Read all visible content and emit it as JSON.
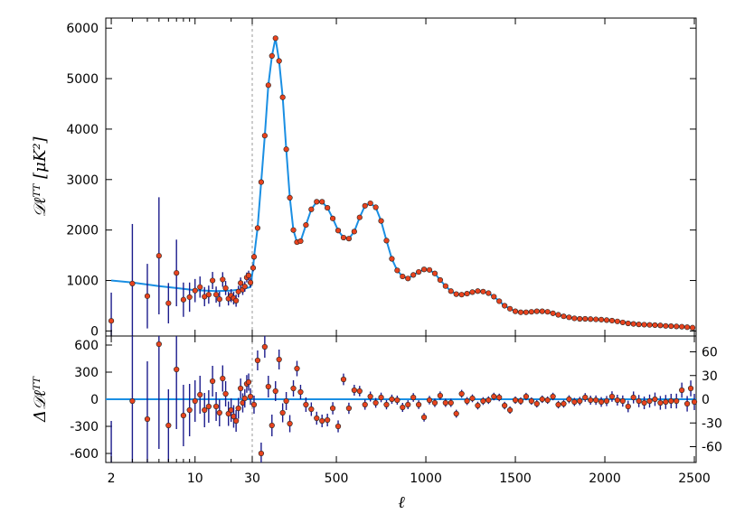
{
  "chart_data": [
    {
      "type": "scatter",
      "panel": "top",
      "ylabel": "𝒟ℓᵀᵀ [μK²]",
      "ylim": [
        -100,
        6200
      ],
      "yticks": [
        0,
        1000,
        2000,
        3000,
        4000,
        5000,
        6000
      ],
      "x_scale": "log below ℓ=30, linear above",
      "xlim": [
        1.8,
        2510
      ],
      "split_marker_x": 30,
      "colors": {
        "model": "#1a8fe3",
        "points": "#e8431e",
        "errorbars": "#1c1c8c",
        "split": "#999999"
      },
      "series": [
        {
          "name": "",
          "x": [
            2,
            3,
            4,
            5,
            6,
            7,
            8,
            9,
            10,
            11,
            12,
            13,
            14,
            15,
            16,
            17,
            18,
            19,
            20,
            21,
            22,
            23,
            24,
            25,
            26,
            27,
            28,
            29
          ],
          "y": [
            200,
            940,
            690,
            1490,
            550,
            1150,
            620,
            670,
            800,
            870,
            680,
            720,
            1000,
            720,
            630,
            1020,
            850,
            640,
            700,
            650,
            600,
            780,
            950,
            820,
            880,
            1060,
            1100,
            960
          ],
          "err": [
            560,
            1180,
            640,
            1160,
            400,
            660,
            340,
            290,
            230,
            210,
            190,
            180,
            170,
            160,
            150,
            145,
            140,
            135,
            130,
            125,
            120,
            115,
            110,
            106,
            102,
            98,
            95,
            92
          ]
        },
        {
          "name": "",
          "x": [
            35,
            40,
            60,
            80,
            100,
            120,
            140,
            160,
            180,
            200,
            220,
            240,
            260,
            280,
            300,
            330,
            360,
            390,
            420,
            450,
            480,
            510,
            540,
            570,
            600,
            630,
            660,
            690,
            720,
            750,
            780,
            810,
            840,
            870,
            900,
            930,
            960,
            990,
            1020,
            1050,
            1080,
            1110,
            1140,
            1170,
            1200,
            1230,
            1260,
            1290,
            1320,
            1350,
            1380,
            1410,
            1440,
            1470,
            1500,
            1530,
            1560,
            1590,
            1620,
            1650,
            1680,
            1710,
            1740,
            1770,
            1800,
            1830,
            1860,
            1890,
            1920,
            1950,
            1980,
            2010,
            2040,
            2070,
            2100,
            2130,
            2160,
            2190,
            2220,
            2250,
            2280,
            2310,
            2340,
            2370,
            2400,
            2430,
            2460,
            2490
          ],
          "y": [
            1250,
            1470,
            2040,
            2950,
            3870,
            4870,
            5450,
            5800,
            5350,
            4630,
            3600,
            2640,
            2000,
            1760,
            1780,
            2100,
            2410,
            2560,
            2560,
            2440,
            2230,
            1990,
            1850,
            1830,
            1970,
            2250,
            2480,
            2530,
            2450,
            2180,
            1790,
            1430,
            1200,
            1080,
            1040,
            1110,
            1170,
            1220,
            1210,
            1140,
            1010,
            890,
            790,
            730,
            720,
            740,
            770,
            790,
            780,
            750,
            680,
            590,
            500,
            440,
            390,
            370,
            370,
            380,
            390,
            390,
            380,
            350,
            320,
            290,
            270,
            250,
            240,
            240,
            235,
            230,
            225,
            215,
            205,
            190,
            170,
            150,
            140,
            130,
            125,
            120,
            115,
            110,
            100,
            95,
            90,
            85,
            75,
            65
          ],
          "err": [
            70,
            60,
            50,
            45,
            40,
            40,
            40,
            40,
            40,
            35,
            35,
            30,
            30,
            25,
            25,
            25,
            25,
            25,
            25,
            25,
            25,
            25,
            25,
            25,
            25,
            25,
            25,
            25,
            25,
            25,
            25,
            25,
            25,
            25,
            25,
            25,
            25,
            25,
            25,
            25,
            25,
            25,
            25,
            25,
            25,
            25,
            25,
            25,
            25,
            25,
            25,
            25,
            25,
            25,
            25,
            25,
            25,
            25,
            25,
            25,
            25,
            25,
            25,
            25,
            25,
            25,
            25,
            25,
            25,
            25,
            25,
            25,
            25,
            25,
            25,
            25,
            25,
            25,
            25,
            25,
            25,
            25,
            25,
            25,
            25,
            25,
            25,
            25
          ]
        }
      ],
      "model_curve": {
        "x": [
          2,
          3,
          4,
          5,
          7,
          10,
          15,
          20,
          25,
          29,
          35,
          40,
          60,
          80,
          100,
          120,
          140,
          160,
          180,
          200,
          220,
          240,
          260,
          280,
          300,
          330,
          360,
          390,
          420,
          450,
          480,
          510,
          540,
          570,
          600,
          630,
          660,
          690,
          720,
          750,
          780,
          810,
          840,
          870,
          900,
          930,
          960,
          990,
          1020,
          1050,
          1080,
          1110,
          1140,
          1170,
          1200,
          1230,
          1260,
          1290,
          1320,
          1350,
          1380,
          1410,
          1440,
          1470,
          1500,
          1530,
          1560,
          1590,
          1620,
          1650,
          1680,
          1710,
          1740,
          1770,
          1800,
          1850,
          1900,
          1950,
          2000,
          2050,
          2100,
          2150,
          2200,
          2250,
          2300,
          2350,
          2400,
          2450,
          2500
        ],
        "y": [
          1000,
          960,
          920,
          890,
          850,
          810,
          790,
          800,
          830,
          870,
          1250,
          1470,
          2040,
          2950,
          3870,
          4870,
          5450,
          5800,
          5350,
          4630,
          3600,
          2640,
          2000,
          1760,
          1780,
          2100,
          2410,
          2560,
          2560,
          2440,
          2230,
          1990,
          1850,
          1830,
          1970,
          2250,
          2480,
          2530,
          2450,
          2180,
          1790,
          1430,
          1200,
          1080,
          1040,
          1110,
          1170,
          1220,
          1210,
          1140,
          1010,
          890,
          790,
          730,
          720,
          740,
          770,
          790,
          780,
          750,
          680,
          590,
          500,
          440,
          390,
          370,
          370,
          380,
          390,
          390,
          380,
          350,
          320,
          290,
          270,
          245,
          235,
          228,
          220,
          200,
          180,
          160,
          140,
          125,
          115,
          105,
          95,
          85,
          70
        ]
      }
    },
    {
      "type": "scatter",
      "panel": "bottom",
      "ylabel": "Δ𝒟ℓᵀᵀ",
      "xlabel": "ℓ",
      "ylim_left": [
        -700,
        700
      ],
      "yticks_left": [
        -600,
        -300,
        0,
        300,
        600
      ],
      "ylim_right": [
        -80,
        80
      ],
      "yticks_right": [
        -60,
        -30,
        0,
        30,
        60
      ],
      "xticks": [
        2,
        10,
        30,
        500,
        1000,
        1500,
        2000,
        2500
      ],
      "xtick_labels": [
        "2",
        "10",
        "30",
        "500",
        "1000",
        "1500",
        "2000",
        "2500"
      ],
      "series": [
        {
          "name": "",
          "x": [
            2,
            3,
            4,
            5,
            6,
            7,
            8,
            9,
            10,
            11,
            12,
            13,
            14,
            15,
            16,
            17,
            18,
            19,
            20,
            21,
            22,
            23,
            24,
            25,
            26,
            27,
            28,
            29
          ],
          "y": [
            -800,
            -20,
            -220,
            610,
            -290,
            330,
            -180,
            -120,
            -20,
            50,
            -120,
            -80,
            200,
            -80,
            -150,
            230,
            60,
            -160,
            -120,
            -190,
            -240,
            -100,
            120,
            -40,
            10,
            170,
            190,
            30
          ],
          "err": [
            560,
            1180,
            640,
            1160,
            400,
            660,
            340,
            290,
            230,
            210,
            190,
            180,
            170,
            160,
            150,
            145,
            140,
            135,
            130,
            125,
            120,
            115,
            110,
            106,
            102,
            98,
            95,
            92
          ]
        },
        {
          "name": "",
          "x": [
            40,
            60,
            80,
            100,
            120,
            140,
            160,
            180,
            200,
            220,
            240,
            260,
            280,
            300,
            330,
            360,
            390,
            420,
            450,
            480,
            510,
            540,
            570,
            600,
            630,
            660,
            690,
            720,
            750,
            780,
            810,
            840,
            870,
            900,
            930,
            960,
            990,
            1020,
            1050,
            1080,
            1110,
            1140,
            1170,
            1200,
            1230,
            1260,
            1290,
            1320,
            1350,
            1380,
            1410,
            1440,
            1470,
            1500,
            1530,
            1560,
            1590,
            1620,
            1650,
            1680,
            1710,
            1740,
            1770,
            1800,
            1830,
            1860,
            1890,
            1920,
            1950,
            1980,
            2010,
            2040,
            2070,
            2100,
            2130,
            2160,
            2190,
            2220,
            2250,
            2280,
            2310,
            2340,
            2370,
            2400,
            2430,
            2460,
            2480,
            2500
          ],
          "y": [
            -60,
            430,
            -600,
            580,
            140,
            -290,
            90,
            440,
            -150,
            -20,
            -270,
            120,
            340,
            80,
            -60,
            -110,
            -210,
            -240,
            -230,
            -100,
            -300,
            220,
            -100,
            100,
            90,
            -60,
            30,
            -40,
            20,
            -60,
            0,
            -10,
            -90,
            -60,
            20,
            -60,
            -200,
            -10,
            -40,
            40,
            -40,
            -40,
            -160,
            60,
            -20,
            10,
            -70,
            -20,
            -10,
            30,
            20,
            -70,
            -120,
            -10,
            -20,
            30,
            -20,
            -50,
            0,
            -10,
            30,
            -60,
            -50,
            0,
            -30,
            -20,
            20,
            -10,
            -10,
            -30,
            -20,
            30,
            -10,
            -20,
            -80,
            20,
            -20,
            -40,
            -20,
            0,
            -40,
            -30,
            -20,
            -20,
            100,
            -50,
            120,
            -30
          ],
          "err": [
            100,
            110,
            120,
            120,
            120,
            120,
            110,
            110,
            105,
            100,
            95,
            90,
            85,
            80,
            80,
            75,
            72,
            70,
            70,
            68,
            66,
            64,
            62,
            60,
            58,
            56,
            55,
            54,
            53,
            52,
            51,
            50,
            50,
            49,
            48,
            48,
            47,
            47,
            46,
            46,
            45,
            45,
            44,
            44,
            44,
            43,
            43,
            43,
            42,
            42,
            42,
            42,
            41,
            41,
            41,
            41,
            41,
            41,
            41,
            41,
            42,
            42,
            43,
            44,
            45,
            46,
            48,
            50,
            52,
            54,
            56,
            58,
            60,
            62,
            64,
            66,
            68,
            70,
            72,
            74,
            76,
            78,
            80,
            82,
            84,
            86,
            88,
            90
          ]
        }
      ]
    }
  ]
}
